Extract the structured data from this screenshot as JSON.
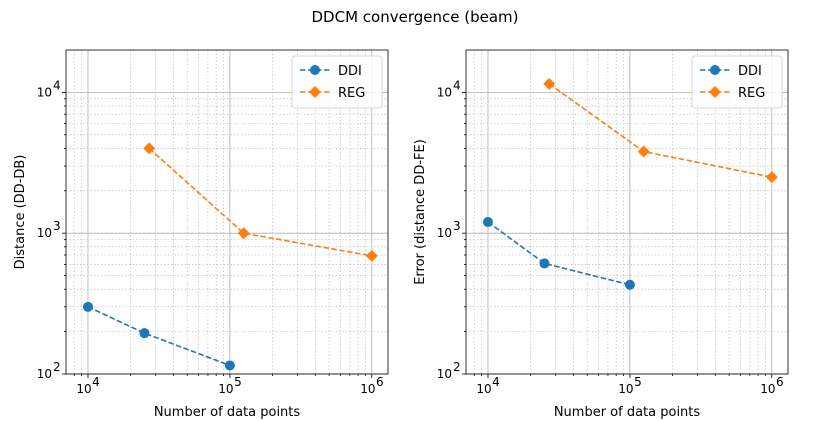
{
  "figure_title": "DDCM convergence (beam)",
  "chart_data": [
    {
      "type": "line",
      "xscale": "log",
      "yscale": "log",
      "xlim": [
        7000,
        1300000
      ],
      "ylim": [
        100,
        20000
      ],
      "xlabel": "Number of data points",
      "ylabel": "Distance (DD-DB)",
      "x_ticks": [
        {
          "value": 10000,
          "base": "10",
          "exp": "4"
        },
        {
          "value": 100000,
          "base": "10",
          "exp": "5"
        },
        {
          "value": 1000000,
          "base": "10",
          "exp": "6"
        }
      ],
      "y_ticks": [
        {
          "value": 100,
          "base": "10",
          "exp": "2"
        },
        {
          "value": 1000,
          "base": "10",
          "exp": "3"
        },
        {
          "value": 10000,
          "base": "10",
          "exp": "4"
        }
      ],
      "legend_position": "top-right",
      "series": [
        {
          "name": "DDI",
          "color": "#1f77b4",
          "marker": "circle",
          "x": [
            10000,
            25000,
            100000
          ],
          "y": [
            300,
            195,
            115
          ]
        },
        {
          "name": "REG",
          "color": "#ff7f0e",
          "marker": "diamond",
          "x": [
            27000,
            125000,
            1000000
          ],
          "y": [
            4000,
            1000,
            690
          ]
        }
      ]
    },
    {
      "type": "line",
      "xscale": "log",
      "yscale": "log",
      "xlim": [
        7000,
        1300000
      ],
      "ylim": [
        100,
        20000
      ],
      "xlabel": "Number of data points",
      "ylabel": "Error (distance DD-FE)",
      "x_ticks": [
        {
          "value": 10000,
          "base": "10",
          "exp": "4"
        },
        {
          "value": 100000,
          "base": "10",
          "exp": "5"
        },
        {
          "value": 1000000,
          "base": "10",
          "exp": "6"
        }
      ],
      "y_ticks": [
        {
          "value": 100,
          "base": "10",
          "exp": "2"
        },
        {
          "value": 1000,
          "base": "10",
          "exp": "3"
        },
        {
          "value": 10000,
          "base": "10",
          "exp": "4"
        }
      ],
      "legend_position": "top-right",
      "series": [
        {
          "name": "DDI",
          "color": "#1f77b4",
          "marker": "circle",
          "x": [
            10000,
            25000,
            100000
          ],
          "y": [
            1200,
            610,
            430
          ]
        },
        {
          "name": "REG",
          "color": "#ff7f0e",
          "marker": "diamond",
          "x": [
            27000,
            125000,
            1000000
          ],
          "y": [
            11500,
            3800,
            2500
          ]
        }
      ]
    }
  ]
}
